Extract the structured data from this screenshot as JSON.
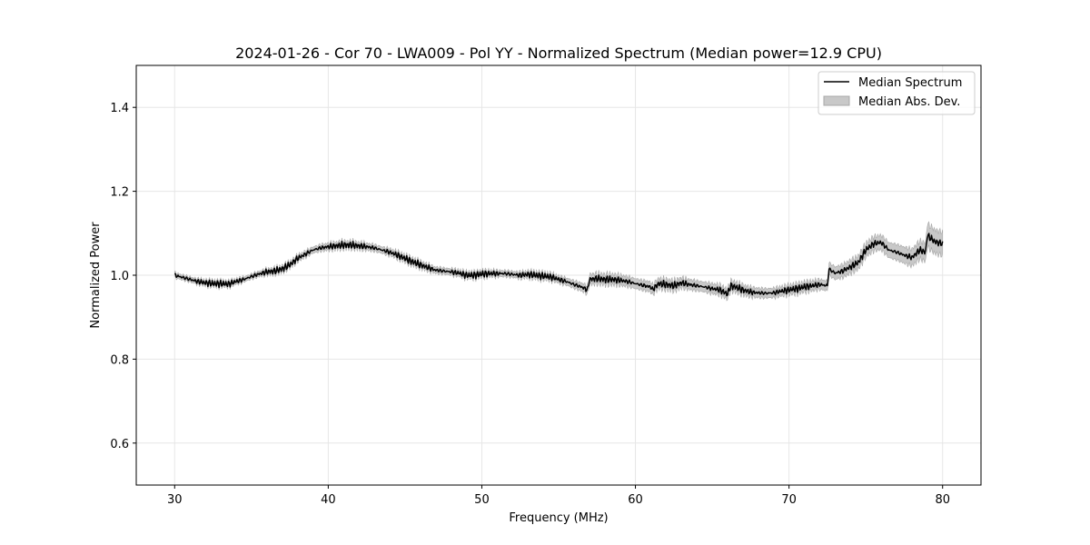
{
  "chart_data": {
    "type": "line",
    "title": "2024-01-26 - Cor 70 - LWA009 - Pol YY - Normalized Spectrum (Median power=12.9 CPU)",
    "xlabel": "Frequency (MHz)",
    "ylabel": "Normalized Power",
    "xlim": [
      27.5,
      82.5
    ],
    "ylim": [
      0.5,
      1.5
    ],
    "xticks": [
      30,
      40,
      50,
      60,
      70,
      80
    ],
    "yticks": [
      0.6,
      0.8,
      1.0,
      1.2,
      1.4
    ],
    "xtick_labels": [
      "30",
      "40",
      "50",
      "60",
      "70",
      "80"
    ],
    "ytick_labels": [
      "0.6",
      "0.8",
      "1.0",
      "1.2",
      "1.4"
    ],
    "grid": true,
    "legend_position": "top-right",
    "series": [
      {
        "name": "Median Spectrum",
        "kind": "line",
        "color": "#000000",
        "x": [
          30,
          30.5,
          31,
          31.5,
          32,
          32.5,
          33,
          33.5,
          34,
          34.5,
          35,
          35.5,
          36,
          36.5,
          37,
          37.5,
          38,
          38.5,
          39,
          39.5,
          40,
          40.5,
          41,
          41.5,
          42,
          42.5,
          43,
          43.5,
          44,
          44.5,
          45,
          45.5,
          46,
          46.5,
          47,
          47.5,
          48,
          48.5,
          49,
          49.5,
          50,
          50.5,
          51,
          51.5,
          52,
          52.5,
          53,
          53.5,
          54,
          54.5,
          55,
          55.5,
          56,
          56.5,
          56.9,
          57.0,
          57.5,
          58,
          58.5,
          59,
          59.5,
          60,
          60.5,
          61,
          61.1,
          61.5,
          62,
          62.5,
          63,
          63.5,
          64,
          64.5,
          65,
          65.5,
          66,
          66.2,
          66.5,
          67,
          67.5,
          68,
          68.5,
          69,
          69.5,
          70,
          70.5,
          71,
          71.5,
          72,
          72.5,
          72.6,
          73,
          73.5,
          74,
          74.5,
          75,
          75.5,
          76,
          76.5,
          77,
          77.5,
          78,
          78.5,
          78.9,
          79.0,
          79.5,
          80
        ],
        "values": [
          1.0,
          0.995,
          0.99,
          0.985,
          0.982,
          0.98,
          0.98,
          0.979,
          0.985,
          0.99,
          0.997,
          1.003,
          1.008,
          1.01,
          1.015,
          1.025,
          1.04,
          1.05,
          1.06,
          1.065,
          1.068,
          1.07,
          1.072,
          1.072,
          1.07,
          1.068,
          1.065,
          1.06,
          1.055,
          1.048,
          1.04,
          1.032,
          1.025,
          1.018,
          1.012,
          1.01,
          1.008,
          1.005,
          1.0,
          1.0,
          1.003,
          1.004,
          1.004,
          1.004,
          1.002,
          1.0,
          1.002,
          1.0,
          0.998,
          0.996,
          0.99,
          0.985,
          0.978,
          0.972,
          0.965,
          0.99,
          0.992,
          0.99,
          0.99,
          0.988,
          0.985,
          0.98,
          0.976,
          0.972,
          0.965,
          0.98,
          0.978,
          0.975,
          0.982,
          0.978,
          0.975,
          0.972,
          0.968,
          0.965,
          0.955,
          0.975,
          0.972,
          0.965,
          0.96,
          0.958,
          0.957,
          0.958,
          0.962,
          0.965,
          0.968,
          0.972,
          0.975,
          0.978,
          0.975,
          1.015,
          1.005,
          1.01,
          1.02,
          1.03,
          1.06,
          1.075,
          1.078,
          1.06,
          1.055,
          1.048,
          1.042,
          1.06,
          1.055,
          1.095,
          1.08,
          1.075
        ]
      },
      {
        "name": "Median Abs. Dev.",
        "kind": "band",
        "color": "#c8c8c8",
        "edge_color": "#a8a8a8",
        "x": [
          30,
          35,
          40,
          45,
          50,
          55,
          56.9,
          57.0,
          60,
          65,
          70,
          72.5,
          72.6,
          75,
          78,
          78.9,
          79.0,
          80
        ],
        "half_width": [
          0.006,
          0.006,
          0.008,
          0.008,
          0.007,
          0.008,
          0.01,
          0.012,
          0.012,
          0.012,
          0.011,
          0.012,
          0.015,
          0.016,
          0.02,
          0.022,
          0.028,
          0.028
        ]
      }
    ],
    "legend": [
      "Median Spectrum",
      "Median Abs. Dev."
    ]
  }
}
